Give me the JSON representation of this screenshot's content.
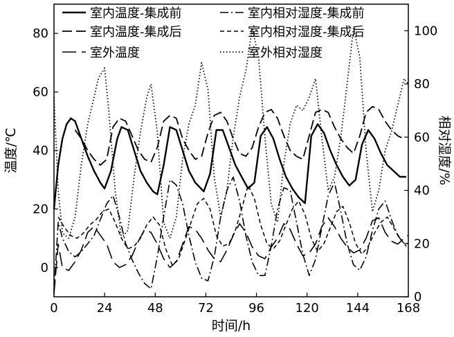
{
  "chart_data": {
    "type": "line",
    "xlabel": "时间/h",
    "ylabel_left": "温度/℃",
    "ylabel_right": "相对湿度/%",
    "x_ticks": [
      0,
      24,
      48,
      72,
      96,
      120,
      144,
      168
    ],
    "y_left_ticks": [
      0,
      20,
      40,
      60,
      80
    ],
    "y_right_ticks": [
      0,
      20,
      40,
      60,
      80,
      100
    ],
    "xlim": [
      0,
      168
    ],
    "ylim_left": [
      -10,
      90
    ],
    "ylim_right": [
      0,
      110
    ],
    "grid": false,
    "legend_placement": "top",
    "series": [
      {
        "name": "室内温度-集成前",
        "axis": "left",
        "style": "solid",
        "x": [
          0,
          2,
          4,
          6,
          8,
          10,
          13,
          16,
          19,
          22,
          24,
          27,
          30,
          32,
          35,
          38,
          41,
          44,
          47,
          49,
          52,
          55,
          58,
          61,
          64,
          67,
          71,
          74,
          77,
          80,
          83,
          86,
          89,
          92,
          95,
          98,
          101,
          104,
          107,
          110,
          113,
          116,
          119,
          122,
          125,
          128,
          131,
          134,
          137,
          140,
          143,
          146,
          149,
          152,
          155,
          158,
          161,
          164,
          167
        ],
        "y": [
          20,
          35,
          44,
          49,
          51,
          50,
          44,
          38,
          33,
          29,
          27,
          33,
          44,
          48,
          47,
          40,
          33,
          29,
          26,
          25,
          35,
          48,
          47,
          40,
          33,
          29,
          26,
          32,
          47,
          47,
          41,
          35,
          31,
          27,
          29,
          45,
          48,
          44,
          37,
          31,
          27,
          24,
          22,
          45,
          49,
          46,
          40,
          35,
          31,
          28,
          30,
          42,
          47,
          44,
          39,
          35,
          33,
          31,
          31
        ]
      },
      {
        "name": "室内温度-集成后",
        "axis": "left",
        "style": "dash",
        "x": [
          10,
          13,
          16,
          19,
          22,
          25,
          28,
          31,
          34,
          37,
          40,
          43,
          46,
          49,
          52,
          55,
          58,
          61,
          64,
          67,
          70,
          73,
          76,
          79,
          82,
          85,
          88,
          91,
          94,
          97,
          100,
          103,
          106,
          109,
          112,
          115,
          118,
          121,
          124,
          127,
          130,
          133,
          136,
          139,
          142,
          145,
          148,
          151,
          154,
          157,
          160,
          163,
          166
        ],
        "y": [
          47,
          44,
          40,
          37,
          35,
          37,
          48,
          51,
          50,
          45,
          40,
          37,
          36,
          41,
          50,
          52,
          51,
          44,
          40,
          37,
          38,
          46,
          52,
          53,
          50,
          44,
          39,
          38,
          41,
          48,
          53,
          54,
          51,
          45,
          40,
          38,
          37,
          45,
          53,
          54,
          53,
          48,
          44,
          41,
          39,
          45,
          53,
          55,
          54,
          50,
          47,
          45,
          44
        ]
      },
      {
        "name": "室外温度",
        "axis": "left",
        "style": "longdash",
        "x": [
          0,
          2,
          4,
          7,
          10,
          13,
          16,
          19,
          22,
          25,
          28,
          31,
          34,
          37,
          40,
          43,
          46,
          49,
          52,
          55,
          58,
          61,
          64,
          67,
          70,
          73,
          76,
          79,
          82,
          85,
          88,
          91,
          94,
          97,
          100,
          103,
          106,
          109,
          112,
          115,
          118,
          121,
          124,
          127,
          130,
          133,
          136,
          139,
          142,
          145,
          148,
          151,
          154,
          157,
          160,
          163,
          166,
          168
        ],
        "y": [
          -9,
          8,
          0,
          -1,
          2,
          6,
          12,
          14,
          11,
          8,
          2,
          0,
          1,
          4,
          9,
          13,
          12,
          8,
          3,
          0,
          2,
          8,
          14,
          13,
          10,
          6,
          3,
          2,
          6,
          11,
          15,
          12,
          7,
          4,
          3,
          7,
          10,
          15,
          13,
          8,
          4,
          5,
          8,
          14,
          17,
          14,
          10,
          7,
          5,
          6,
          10,
          16,
          17,
          12,
          9,
          8,
          10,
          11
        ]
      },
      {
        "name": "室内相对湿度-集成前",
        "axis": "right",
        "style": "dashdot",
        "x": [
          0,
          2,
          4,
          7,
          10,
          13,
          16,
          19,
          22,
          25,
          28,
          31,
          34,
          37,
          40,
          43,
          46,
          49,
          52,
          55,
          58,
          61,
          64,
          67,
          70,
          73,
          76,
          79,
          82,
          85,
          88,
          91,
          94,
          97,
          100,
          103,
          106,
          109,
          112,
          115,
          118,
          121,
          124,
          127,
          130,
          133,
          136,
          139,
          142,
          145,
          148,
          151,
          154,
          157,
          160,
          163,
          166,
          168
        ],
        "y": [
          2,
          28,
          22,
          17,
          15,
          17,
          20,
          23,
          29,
          35,
          38,
          30,
          20,
          14,
          9,
          5,
          3,
          15,
          30,
          44,
          42,
          35,
          23,
          13,
          7,
          6,
          15,
          30,
          40,
          45,
          36,
          23,
          13,
          8,
          8,
          19,
          33,
          41,
          40,
          28,
          16,
          8,
          14,
          26,
          38,
          43,
          32,
          20,
          12,
          10,
          15,
          25,
          33,
          36,
          29,
          23,
          20,
          20
        ]
      },
      {
        "name": "室内相对湿度-集成后",
        "axis": "right",
        "style": "shortdash",
        "x": [
          2,
          5,
          8,
          11,
          14,
          17,
          20,
          23,
          26,
          29,
          32,
          35,
          38,
          41,
          44,
          47,
          50,
          53,
          56,
          59,
          62,
          65,
          68,
          71,
          74,
          77,
          80,
          83,
          86,
          89,
          92,
          95,
          98,
          101,
          104,
          107,
          110,
          113,
          116,
          119,
          122,
          125,
          128,
          131,
          134,
          137,
          140,
          143,
          146,
          149,
          152,
          155,
          158,
          161,
          164,
          167
        ],
        "y": [
          30,
          26,
          23,
          22,
          24,
          27,
          29,
          32,
          33,
          28,
          22,
          18,
          19,
          22,
          27,
          30,
          27,
          18,
          12,
          14,
          21,
          28,
          35,
          37,
          33,
          23,
          19,
          20,
          25,
          33,
          42,
          37,
          27,
          20,
          18,
          21,
          27,
          33,
          36,
          31,
          22,
          17,
          20,
          26,
          32,
          34,
          28,
          20,
          16,
          19,
          24,
          28,
          30,
          26,
          22,
          19
        ]
      },
      {
        "name": "室外相对湿度",
        "axis": "right",
        "style": "dot",
        "x": [
          0,
          2,
          4,
          7,
          10,
          13,
          16,
          19,
          21,
          24,
          26,
          29,
          32,
          35,
          38,
          41,
          44,
          46,
          49,
          52,
          55,
          58,
          61,
          64,
          67,
          70,
          73,
          76,
          79,
          82,
          85,
          88,
          91,
          94,
          97,
          100,
          103,
          106,
          109,
          112,
          115,
          118,
          121,
          124,
          127,
          130,
          133,
          136,
          139,
          142,
          145,
          148,
          151,
          154,
          157,
          160,
          163,
          166,
          168
        ],
        "y": [
          75,
          40,
          24,
          22,
          30,
          50,
          65,
          75,
          82,
          86,
          70,
          40,
          22,
          25,
          45,
          62,
          75,
          80,
          62,
          28,
          22,
          30,
          52,
          65,
          72,
          88,
          78,
          45,
          30,
          40,
          60,
          75,
          85,
          101,
          90,
          60,
          35,
          28,
          50,
          65,
          72,
          70,
          75,
          82,
          60,
          40,
          45,
          60,
          80,
          101,
          90,
          55,
          32,
          40,
          55,
          62,
          72,
          82,
          80
        ]
      }
    ]
  }
}
